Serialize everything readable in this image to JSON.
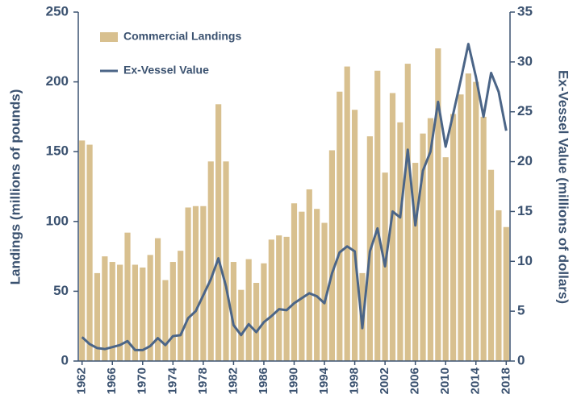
{
  "chart_data": {
    "type": "bar",
    "ylabel": "Landings (millions of pounds)",
    "y2label": "Ex-Vessel Value (millions of dollars)",
    "categories": [
      "1962",
      null,
      null,
      null,
      "1966",
      null,
      null,
      null,
      "1970",
      null,
      null,
      null,
      "1974",
      null,
      null,
      null,
      "1978",
      null,
      null,
      null,
      "1982",
      null,
      null,
      null,
      "1986",
      null,
      null,
      null,
      "1990",
      null,
      null,
      null,
      "1994",
      null,
      null,
      null,
      "1998",
      null,
      null,
      null,
      "2002",
      null,
      null,
      null,
      "2006",
      null,
      null,
      null,
      "2010",
      null,
      null,
      null,
      "2014",
      null,
      null,
      null,
      "2018"
    ],
    "series": [
      {
        "name": "Commercial Landings",
        "type": "bar",
        "color": "#d8c08f",
        "values": [
          158,
          155,
          63,
          75,
          71,
          69,
          92,
          69,
          67,
          76,
          88,
          58,
          71,
          79,
          110,
          111,
          111,
          143,
          184,
          143,
          71,
          51,
          73,
          56,
          70,
          87,
          90,
          89,
          113,
          107,
          123,
          109,
          99,
          151,
          193,
          211,
          180,
          63,
          161,
          208,
          135,
          192,
          171,
          213,
          142,
          163,
          174,
          224,
          146,
          177,
          191,
          206,
          200,
          175,
          137,
          108,
          96
        ]
      },
      {
        "name": "Ex-Vessel Value",
        "type": "line",
        "axis": "y2",
        "color": "#4b6587",
        "values": [
          2.4,
          1.7,
          1.3,
          1.2,
          1.4,
          1.6,
          2.0,
          1.1,
          1.1,
          1.5,
          2.3,
          1.6,
          2.5,
          2.6,
          4.3,
          5.0,
          6.6,
          8.2,
          10.3,
          7.5,
          3.6,
          2.6,
          3.7,
          2.9,
          3.9,
          4.5,
          5.2,
          5.1,
          5.8,
          6.3,
          6.8,
          6.5,
          5.8,
          8.8,
          10.9,
          11.5,
          11.0,
          3.3,
          11.0,
          13.3,
          9.5,
          15.0,
          14.4,
          21.2,
          13.6,
          19.1,
          21.0,
          26.0,
          21.5,
          24.8,
          28.2,
          31.8,
          28.5,
          24.5,
          28.9,
          27.0,
          23.1
        ]
      }
    ],
    "ylim": [
      0,
      250
    ],
    "yticks": [
      0,
      50,
      100,
      150,
      200,
      250
    ],
    "y2lim": [
      0,
      35
    ],
    "y2ticks": [
      0,
      5,
      10,
      15,
      20,
      25,
      30,
      35
    ],
    "legend": "upper left",
    "grid": false
  }
}
